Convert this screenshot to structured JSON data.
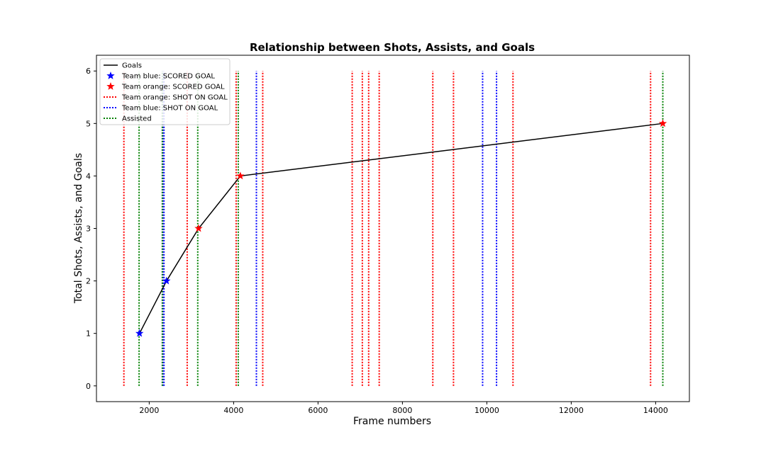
{
  "chart_data": {
    "type": "line",
    "title": "Relationship between Shots, Assists, and Goals",
    "xlabel": "Frame numbers",
    "ylabel": "Total Shots, Assists, and Goals",
    "xlim": [
      750,
      14800
    ],
    "ylim": [
      -0.3,
      6.3
    ],
    "xticks": [
      2000,
      4000,
      6000,
      8000,
      10000,
      12000,
      14000
    ],
    "yticks": [
      0,
      1,
      2,
      3,
      4,
      5,
      6
    ],
    "legend_position": "top-left",
    "grid": false,
    "colors": {
      "goals_line": "#000000",
      "blue": "#0000ff",
      "orange": "#ff0000",
      "shot_orange": "#ff0000",
      "shot_blue": "#0000ff",
      "assisted": "#008000"
    },
    "series": [
      {
        "name": "Goals",
        "kind": "line",
        "x": [
          1770,
          2410,
          3170,
          4160,
          14170
        ],
        "y": [
          1,
          2,
          3,
          4,
          5
        ]
      },
      {
        "name": "Team blue: SCORED GOAL",
        "kind": "scatter-star",
        "x": [
          1770,
          2410
        ],
        "y": [
          1,
          2
        ]
      },
      {
        "name": "Team orange: SCORED GOAL",
        "kind": "scatter-star",
        "x": [
          3170,
          4160,
          14170
        ],
        "y": [
          3,
          4,
          5
        ]
      },
      {
        "name": "Team orange: SHOT ON GOAL",
        "kind": "vline-dotted",
        "x": [
          1400,
          2900,
          4060,
          4690,
          6810,
          7050,
          7200,
          7450,
          8720,
          9210,
          10620,
          13880
        ],
        "y_range": [
          0,
          6
        ]
      },
      {
        "name": "Team blue: SHOT ON GOAL",
        "kind": "vline-dotted",
        "x": [
          2320,
          2350,
          4540,
          9900,
          10230
        ],
        "y_range": [
          0,
          6
        ]
      },
      {
        "name": "Assisted",
        "kind": "vline-dotted",
        "x": [
          1760,
          2310,
          3150,
          4110,
          14170
        ],
        "y_range": [
          0,
          6
        ]
      }
    ]
  }
}
